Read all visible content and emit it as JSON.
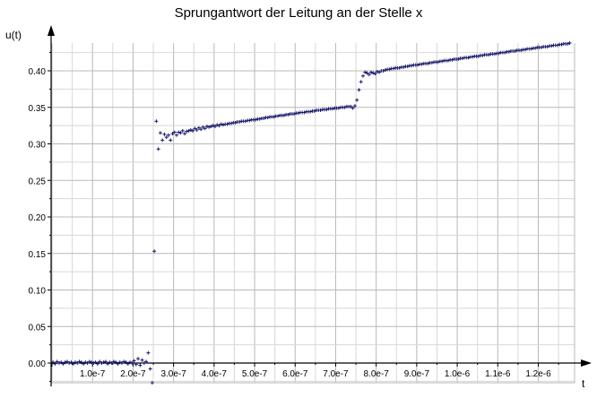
{
  "chart_data": {
    "type": "scatter",
    "title": "Sprungantwort der Leitung an der Stelle x",
    "xlabel": "t",
    "ylabel": "u(t)",
    "xlim": [
      0,
      1.28e-06
    ],
    "ylim": [
      -0.025,
      0.45
    ],
    "grid": true,
    "x_ticks": [
      {
        "v": 1e-07,
        "label": "1.0e-7"
      },
      {
        "v": 2e-07,
        "label": "2.0e-7"
      },
      {
        "v": 3e-07,
        "label": "3.0e-7"
      },
      {
        "v": 4e-07,
        "label": "4.0e-7"
      },
      {
        "v": 5e-07,
        "label": "5.0e-7"
      },
      {
        "v": 6e-07,
        "label": "6.0e-7"
      },
      {
        "v": 7e-07,
        "label": "7.0e-7"
      },
      {
        "v": 8e-07,
        "label": "8.0e-7"
      },
      {
        "v": 9e-07,
        "label": "9.0e-7"
      },
      {
        "v": 1e-06,
        "label": "1.0e-6"
      },
      {
        "v": 1.1e-06,
        "label": "1.1e-6"
      },
      {
        "v": 1.2e-06,
        "label": "1.2e-6"
      }
    ],
    "y_ticks": [
      {
        "v": 0.0,
        "label": "0.00"
      },
      {
        "v": 0.05,
        "label": "0.05"
      },
      {
        "v": 0.1,
        "label": "0.10"
      },
      {
        "v": 0.15,
        "label": "0.15"
      },
      {
        "v": 0.2,
        "label": "0.20"
      },
      {
        "v": 0.25,
        "label": "0.25"
      },
      {
        "v": 0.3,
        "label": "0.30"
      },
      {
        "v": 0.35,
        "label": "0.35"
      },
      {
        "v": 0.4,
        "label": "0.40"
      }
    ],
    "series": [
      {
        "marker": "+",
        "color": "#1a1a6e",
        "x": [
          2.5e-09,
          7.5e-09,
          1.25e-08,
          1.75e-08,
          2.25e-08,
          2.75e-08,
          3.25e-08,
          3.75e-08,
          4.25e-08,
          4.75e-08,
          5.25e-08,
          5.75e-08,
          6.25e-08,
          6.75e-08,
          7.25e-08,
          7.75e-08,
          8.25e-08,
          8.75e-08,
          9.25e-08,
          9.75e-08,
          1.025e-07,
          1.075e-07,
          1.125e-07,
          1.175e-07,
          1.225e-07,
          1.275e-07,
          1.325e-07,
          1.375e-07,
          1.425e-07,
          1.475e-07,
          1.525e-07,
          1.575e-07,
          1.625e-07,
          1.675e-07,
          1.725e-07,
          1.775e-07,
          1.825e-07,
          1.875e-07,
          1.925e-07,
          1.975e-07,
          2.025e-07,
          2.075e-07,
          2.125e-07,
          2.175e-07,
          2.225e-07,
          2.275e-07,
          2.325e-07,
          2.375e-07,
          2.425e-07,
          2.475e-07,
          2.525e-07,
          2.575e-07,
          2.625e-07,
          2.675e-07,
          2.725e-07,
          2.775e-07,
          2.825e-07,
          2.875e-07,
          2.925e-07,
          2.975e-07,
          3.025e-07,
          3.075e-07,
          3.125e-07,
          3.175e-07,
          3.225e-07,
          3.275e-07,
          3.325e-07,
          3.375e-07,
          3.425e-07,
          3.475e-07,
          3.525e-07,
          3.575e-07,
          3.625e-07,
          3.675e-07,
          3.725e-07,
          3.775e-07,
          3.825e-07,
          3.875e-07,
          3.925e-07,
          3.975e-07,
          4.025e-07,
          4.075e-07,
          4.125e-07,
          4.175e-07,
          4.225e-07,
          4.275e-07,
          4.325e-07,
          4.375e-07,
          4.425e-07,
          4.475e-07,
          4.525e-07,
          4.575e-07,
          4.625e-07,
          4.675e-07,
          4.725e-07,
          4.775e-07,
          4.825e-07,
          4.875e-07,
          4.925e-07,
          4.975e-07,
          5.025e-07,
          5.075e-07,
          5.125e-07,
          5.175e-07,
          5.225e-07,
          5.275e-07,
          5.325e-07,
          5.375e-07,
          5.425e-07,
          5.475e-07,
          5.525e-07,
          5.575e-07,
          5.625e-07,
          5.675e-07,
          5.725e-07,
          5.775e-07,
          5.825e-07,
          5.875e-07,
          5.925e-07,
          5.975e-07,
          6.025e-07,
          6.075e-07,
          6.125e-07,
          6.175e-07,
          6.225e-07,
          6.275e-07,
          6.325e-07,
          6.375e-07,
          6.425e-07,
          6.475e-07,
          6.525e-07,
          6.575e-07,
          6.625e-07,
          6.675e-07,
          6.725e-07,
          6.775e-07,
          6.825e-07,
          6.875e-07,
          6.925e-07,
          6.975e-07,
          7.025e-07,
          7.075e-07,
          7.125e-07,
          7.175e-07,
          7.225e-07,
          7.275e-07,
          7.325e-07,
          7.375e-07,
          7.425e-07,
          7.475e-07,
          7.525e-07,
          7.575e-07,
          7.625e-07,
          7.675e-07,
          7.725e-07,
          7.775e-07,
          7.825e-07,
          7.875e-07,
          7.925e-07,
          7.975e-07,
          8.025e-07,
          8.075e-07,
          8.125e-07,
          8.175e-07,
          8.225e-07,
          8.275e-07,
          8.325e-07,
          8.375e-07,
          8.425e-07,
          8.475e-07,
          8.525e-07,
          8.575e-07,
          8.625e-07,
          8.675e-07,
          8.725e-07,
          8.775e-07,
          8.825e-07,
          8.875e-07,
          8.925e-07,
          8.975e-07,
          9.025e-07,
          9.075e-07,
          9.125e-07,
          9.175e-07,
          9.225e-07,
          9.275e-07,
          9.325e-07,
          9.375e-07,
          9.425e-07,
          9.475e-07,
          9.525e-07,
          9.575e-07,
          9.625e-07,
          9.675e-07,
          9.725e-07,
          9.775e-07,
          9.825e-07,
          9.875e-07,
          9.925e-07,
          9.975e-07,
          1.0025e-06,
          1.0075e-06,
          1.0125e-06,
          1.0175e-06,
          1.0225e-06,
          1.0275e-06,
          1.0325e-06,
          1.0375e-06,
          1.0425e-06,
          1.0475e-06,
          1.0525e-06,
          1.0575e-06,
          1.0625e-06,
          1.0675e-06,
          1.0725e-06,
          1.0775e-06,
          1.0825e-06,
          1.0875e-06,
          1.0925e-06,
          1.0975e-06,
          1.1025e-06,
          1.1075e-06,
          1.1125e-06,
          1.1175e-06,
          1.1225e-06,
          1.1275e-06,
          1.1325e-06,
          1.1375e-06,
          1.1425e-06,
          1.1475e-06,
          1.1525e-06,
          1.1575e-06,
          1.1625e-06,
          1.1675e-06,
          1.1725e-06,
          1.1775e-06,
          1.1825e-06,
          1.1875e-06,
          1.1925e-06,
          1.1975e-06,
          1.2025e-06,
          1.2075e-06,
          1.2125e-06,
          1.2175e-06,
          1.2225e-06,
          1.2275e-06,
          1.2325e-06,
          1.2375e-06,
          1.2425e-06,
          1.2475e-06,
          1.2525e-06,
          1.2575e-06,
          1.2625e-06,
          1.2675e-06,
          1.2725e-06,
          1.2775e-06
        ],
        "y": [
          0.001,
          -0.001,
          0.002,
          0.0,
          0.001,
          -0.001,
          0.001,
          0.002,
          0.0,
          0.001,
          -0.001,
          0.001,
          0.0,
          0.002,
          0.001,
          -0.001,
          0.001,
          0.0,
          0.002,
          0.001,
          0.0,
          0.001,
          -0.001,
          0.002,
          0.0,
          0.001,
          0.002,
          -0.001,
          0.001,
          0.0,
          0.002,
          0.001,
          -0.001,
          0.001,
          0.0,
          0.002,
          0.001,
          -0.001,
          0.001,
          0.0,
          0.003,
          -0.002,
          0.006,
          -0.003,
          0.004,
          0.0,
          0.002,
          0.014,
          -0.008,
          -0.027,
          0.153,
          0.331,
          0.293,
          0.315,
          0.305,
          0.313,
          0.309,
          0.312,
          0.305,
          0.314,
          0.316,
          0.312,
          0.316,
          0.315,
          0.318,
          0.314,
          0.317,
          0.318,
          0.319,
          0.318,
          0.321,
          0.319,
          0.322,
          0.32,
          0.323,
          0.321,
          0.324,
          0.323,
          0.324,
          0.325,
          0.324,
          0.326,
          0.325,
          0.327,
          0.326,
          0.327,
          0.327,
          0.328,
          0.328,
          0.329,
          0.329,
          0.33,
          0.33,
          0.331,
          0.331,
          0.331,
          0.332,
          0.332,
          0.333,
          0.333,
          0.333,
          0.334,
          0.334,
          0.335,
          0.335,
          0.336,
          0.336,
          0.337,
          0.337,
          0.337,
          0.338,
          0.338,
          0.339,
          0.339,
          0.339,
          0.34,
          0.34,
          0.341,
          0.341,
          0.341,
          0.342,
          0.342,
          0.343,
          0.343,
          0.343,
          0.344,
          0.344,
          0.344,
          0.345,
          0.345,
          0.346,
          0.346,
          0.346,
          0.347,
          0.347,
          0.347,
          0.348,
          0.348,
          0.348,
          0.349,
          0.349,
          0.349,
          0.35,
          0.35,
          0.35,
          0.351,
          0.351,
          0.351,
          0.349,
          0.352,
          0.36,
          0.374,
          0.385,
          0.393,
          0.398,
          0.397,
          0.395,
          0.398,
          0.397,
          0.396,
          0.399,
          0.398,
          0.4,
          0.4,
          0.401,
          0.402,
          0.402,
          0.403,
          0.403,
          0.404,
          0.404,
          0.404,
          0.405,
          0.405,
          0.406,
          0.406,
          0.407,
          0.407,
          0.408,
          0.408,
          0.408,
          0.409,
          0.409,
          0.41,
          0.41,
          0.41,
          0.411,
          0.411,
          0.412,
          0.412,
          0.412,
          0.413,
          0.413,
          0.414,
          0.414,
          0.414,
          0.415,
          0.415,
          0.416,
          0.416,
          0.416,
          0.417,
          0.417,
          0.418,
          0.418,
          0.418,
          0.419,
          0.419,
          0.42,
          0.42,
          0.42,
          0.421,
          0.421,
          0.422,
          0.422,
          0.422,
          0.423,
          0.423,
          0.423,
          0.424,
          0.424,
          0.425,
          0.425,
          0.425,
          0.426,
          0.426,
          0.427,
          0.427,
          0.427,
          0.428,
          0.428,
          0.428,
          0.429,
          0.429,
          0.43,
          0.43,
          0.43,
          0.431,
          0.431,
          0.432,
          0.432,
          0.432,
          0.433,
          0.433,
          0.433,
          0.434,
          0.434,
          0.435,
          0.435,
          0.435,
          0.436,
          0.436,
          0.437,
          0.437,
          0.437,
          0.438
        ]
      }
    ]
  }
}
